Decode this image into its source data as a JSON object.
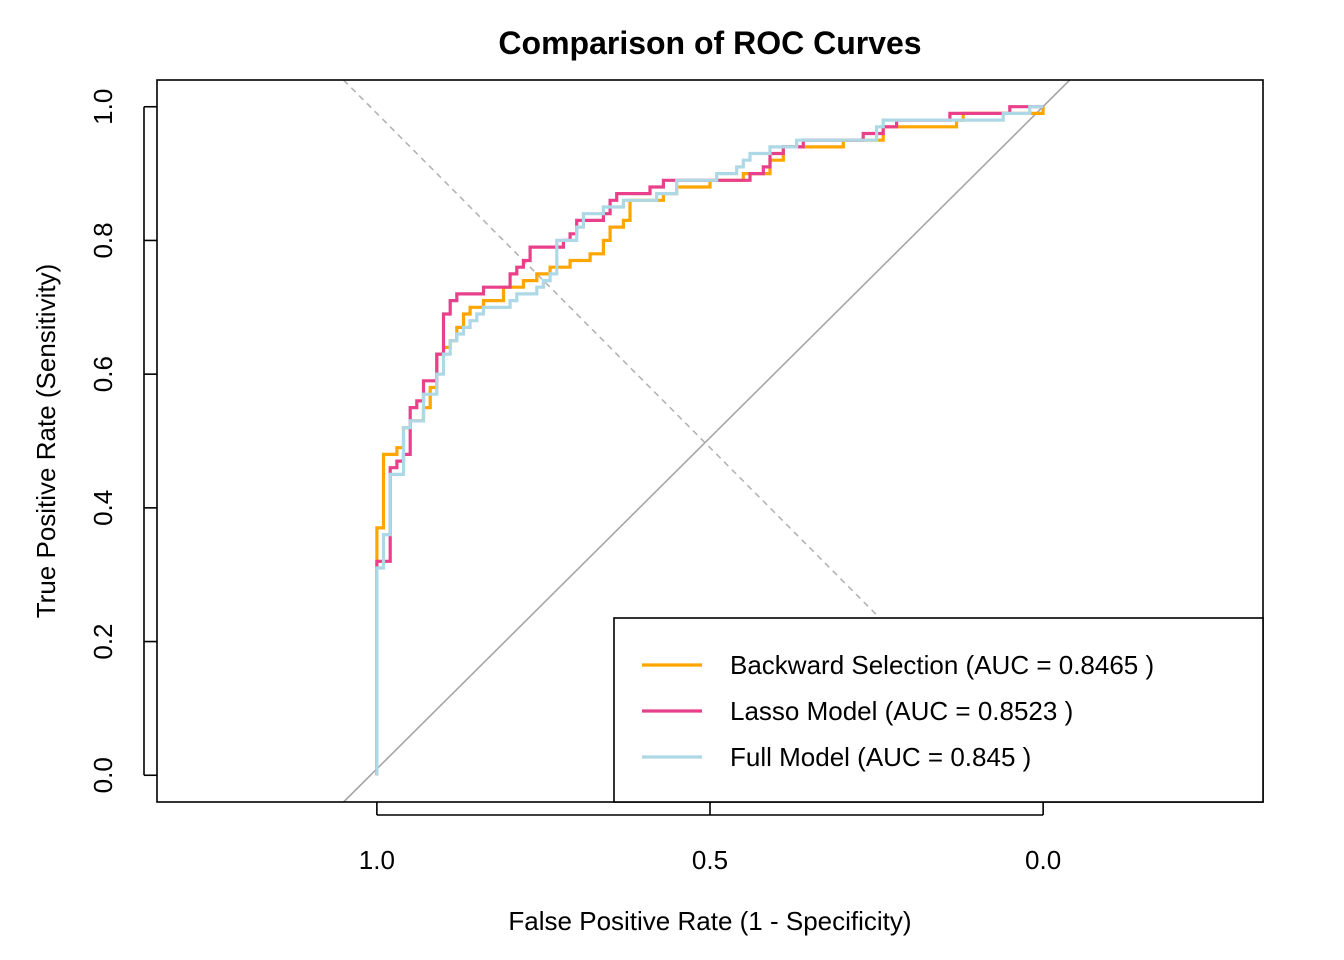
{
  "chart_data": {
    "type": "line",
    "title": "Comparison of ROC Curves",
    "xlabel": "False Positive Rate (1 - Specificity)",
    "ylabel": "True Positive Rate (Sensitivity)",
    "x_axis_reversed": true,
    "xlim": [
      1.33,
      -0.33
    ],
    "ylim": [
      -0.04,
      1.04
    ],
    "x_ticks": [
      {
        "value": 1.0,
        "label": "1.0"
      },
      {
        "value": 0.5,
        "label": "0.5"
      },
      {
        "value": 0.0,
        "label": "0.0"
      }
    ],
    "y_ticks": [
      {
        "value": 0.0,
        "label": "0.0"
      },
      {
        "value": 0.2,
        "label": "0.2"
      },
      {
        "value": 0.4,
        "label": "0.4"
      },
      {
        "value": 0.6,
        "label": "0.6"
      },
      {
        "value": 0.8,
        "label": "0.8"
      },
      {
        "value": 1.0,
        "label": "1.0"
      }
    ],
    "grid": false,
    "legend_position": "bottom-right",
    "reference_lines": [
      {
        "kind": "diagonal-solid",
        "color": "#a6a6a6",
        "points": [
          [
            1.05,
            -0.04
          ],
          [
            -0.04,
            1.04
          ]
        ]
      },
      {
        "kind": "diagonal-dashed",
        "color": "#b3b3b3",
        "points": [
          [
            1.05,
            1.04
          ],
          [
            0.25,
            0.24
          ]
        ]
      }
    ],
    "series": [
      {
        "name": "Backward Selection (AUC = 0.8465 )",
        "color": "#ffa500",
        "points": [
          [
            1.0,
            0.0
          ],
          [
            1.0,
            0.37
          ],
          [
            0.99,
            0.37
          ],
          [
            0.99,
            0.48
          ],
          [
            0.97,
            0.48
          ],
          [
            0.97,
            0.49
          ],
          [
            0.96,
            0.49
          ],
          [
            0.96,
            0.52
          ],
          [
            0.95,
            0.52
          ],
          [
            0.95,
            0.53
          ],
          [
            0.93,
            0.53
          ],
          [
            0.93,
            0.55
          ],
          [
            0.92,
            0.55
          ],
          [
            0.92,
            0.58
          ],
          [
            0.91,
            0.58
          ],
          [
            0.91,
            0.63
          ],
          [
            0.9,
            0.63
          ],
          [
            0.9,
            0.64
          ],
          [
            0.89,
            0.64
          ],
          [
            0.89,
            0.65
          ],
          [
            0.88,
            0.65
          ],
          [
            0.88,
            0.67
          ],
          [
            0.87,
            0.67
          ],
          [
            0.87,
            0.69
          ],
          [
            0.86,
            0.69
          ],
          [
            0.86,
            0.7
          ],
          [
            0.84,
            0.7
          ],
          [
            0.84,
            0.71
          ],
          [
            0.81,
            0.71
          ],
          [
            0.81,
            0.73
          ],
          [
            0.78,
            0.73
          ],
          [
            0.78,
            0.74
          ],
          [
            0.76,
            0.74
          ],
          [
            0.76,
            0.75
          ],
          [
            0.74,
            0.75
          ],
          [
            0.74,
            0.76
          ],
          [
            0.71,
            0.76
          ],
          [
            0.71,
            0.77
          ],
          [
            0.68,
            0.77
          ],
          [
            0.68,
            0.78
          ],
          [
            0.66,
            0.78
          ],
          [
            0.66,
            0.8
          ],
          [
            0.65,
            0.8
          ],
          [
            0.65,
            0.82
          ],
          [
            0.63,
            0.82
          ],
          [
            0.63,
            0.83
          ],
          [
            0.62,
            0.83
          ],
          [
            0.62,
            0.86
          ],
          [
            0.57,
            0.86
          ],
          [
            0.57,
            0.87
          ],
          [
            0.55,
            0.87
          ],
          [
            0.55,
            0.88
          ],
          [
            0.5,
            0.88
          ],
          [
            0.5,
            0.89
          ],
          [
            0.45,
            0.89
          ],
          [
            0.45,
            0.9
          ],
          [
            0.41,
            0.9
          ],
          [
            0.41,
            0.92
          ],
          [
            0.39,
            0.92
          ],
          [
            0.39,
            0.94
          ],
          [
            0.3,
            0.94
          ],
          [
            0.3,
            0.95
          ],
          [
            0.24,
            0.95
          ],
          [
            0.24,
            0.97
          ],
          [
            0.13,
            0.97
          ],
          [
            0.13,
            0.98
          ],
          [
            0.12,
            0.98
          ],
          [
            0.12,
            0.99
          ],
          [
            0.0,
            0.99
          ],
          [
            0.0,
            1.0
          ]
        ]
      },
      {
        "name": "Lasso Model (AUC = 0.8523 )",
        "color": "#e8408a",
        "points": [
          [
            1.0,
            0.0
          ],
          [
            1.0,
            0.32
          ],
          [
            0.98,
            0.32
          ],
          [
            0.98,
            0.34
          ],
          [
            0.98,
            0.46
          ],
          [
            0.97,
            0.46
          ],
          [
            0.97,
            0.47
          ],
          [
            0.96,
            0.47
          ],
          [
            0.96,
            0.48
          ],
          [
            0.95,
            0.48
          ],
          [
            0.95,
            0.55
          ],
          [
            0.94,
            0.55
          ],
          [
            0.94,
            0.56
          ],
          [
            0.93,
            0.56
          ],
          [
            0.93,
            0.59
          ],
          [
            0.91,
            0.59
          ],
          [
            0.91,
            0.63
          ],
          [
            0.9,
            0.63
          ],
          [
            0.9,
            0.69
          ],
          [
            0.89,
            0.69
          ],
          [
            0.89,
            0.71
          ],
          [
            0.88,
            0.71
          ],
          [
            0.88,
            0.72
          ],
          [
            0.84,
            0.72
          ],
          [
            0.84,
            0.73
          ],
          [
            0.8,
            0.73
          ],
          [
            0.8,
            0.75
          ],
          [
            0.79,
            0.75
          ],
          [
            0.79,
            0.76
          ],
          [
            0.78,
            0.76
          ],
          [
            0.78,
            0.77
          ],
          [
            0.77,
            0.77
          ],
          [
            0.77,
            0.79
          ],
          [
            0.72,
            0.79
          ],
          [
            0.72,
            0.8
          ],
          [
            0.71,
            0.8
          ],
          [
            0.71,
            0.81
          ],
          [
            0.7,
            0.81
          ],
          [
            0.7,
            0.83
          ],
          [
            0.66,
            0.83
          ],
          [
            0.66,
            0.84
          ],
          [
            0.65,
            0.84
          ],
          [
            0.65,
            0.86
          ],
          [
            0.64,
            0.86
          ],
          [
            0.64,
            0.87
          ],
          [
            0.59,
            0.87
          ],
          [
            0.59,
            0.88
          ],
          [
            0.57,
            0.88
          ],
          [
            0.57,
            0.89
          ],
          [
            0.44,
            0.89
          ],
          [
            0.44,
            0.9
          ],
          [
            0.42,
            0.9
          ],
          [
            0.42,
            0.91
          ],
          [
            0.41,
            0.91
          ],
          [
            0.41,
            0.93
          ],
          [
            0.39,
            0.93
          ],
          [
            0.39,
            0.94
          ],
          [
            0.36,
            0.94
          ],
          [
            0.36,
            0.95
          ],
          [
            0.27,
            0.95
          ],
          [
            0.27,
            0.96
          ],
          [
            0.24,
            0.96
          ],
          [
            0.24,
            0.97
          ],
          [
            0.22,
            0.97
          ],
          [
            0.22,
            0.98
          ],
          [
            0.14,
            0.98
          ],
          [
            0.14,
            0.99
          ],
          [
            0.05,
            0.99
          ],
          [
            0.05,
            1.0
          ],
          [
            0.0,
            1.0
          ]
        ]
      },
      {
        "name": "Full Model (AUC = 0.845 )",
        "color": "#add8e6",
        "points": [
          [
            1.0,
            0.0
          ],
          [
            1.0,
            0.31
          ],
          [
            0.99,
            0.31
          ],
          [
            0.99,
            0.36
          ],
          [
            0.98,
            0.36
          ],
          [
            0.98,
            0.45
          ],
          [
            0.96,
            0.45
          ],
          [
            0.96,
            0.52
          ],
          [
            0.95,
            0.52
          ],
          [
            0.95,
            0.53
          ],
          [
            0.93,
            0.53
          ],
          [
            0.93,
            0.57
          ],
          [
            0.91,
            0.57
          ],
          [
            0.91,
            0.6
          ],
          [
            0.9,
            0.6
          ],
          [
            0.9,
            0.63
          ],
          [
            0.89,
            0.63
          ],
          [
            0.89,
            0.65
          ],
          [
            0.88,
            0.65
          ],
          [
            0.88,
            0.66
          ],
          [
            0.87,
            0.66
          ],
          [
            0.87,
            0.67
          ],
          [
            0.86,
            0.67
          ],
          [
            0.86,
            0.68
          ],
          [
            0.85,
            0.68
          ],
          [
            0.85,
            0.69
          ],
          [
            0.84,
            0.69
          ],
          [
            0.84,
            0.7
          ],
          [
            0.8,
            0.7
          ],
          [
            0.8,
            0.71
          ],
          [
            0.79,
            0.71
          ],
          [
            0.79,
            0.72
          ],
          [
            0.76,
            0.72
          ],
          [
            0.76,
            0.73
          ],
          [
            0.75,
            0.73
          ],
          [
            0.75,
            0.74
          ],
          [
            0.74,
            0.74
          ],
          [
            0.74,
            0.75
          ],
          [
            0.73,
            0.75
          ],
          [
            0.73,
            0.8
          ],
          [
            0.7,
            0.8
          ],
          [
            0.7,
            0.82
          ],
          [
            0.69,
            0.82
          ],
          [
            0.69,
            0.84
          ],
          [
            0.66,
            0.84
          ],
          [
            0.66,
            0.85
          ],
          [
            0.63,
            0.85
          ],
          [
            0.63,
            0.86
          ],
          [
            0.58,
            0.86
          ],
          [
            0.58,
            0.87
          ],
          [
            0.55,
            0.87
          ],
          [
            0.55,
            0.89
          ],
          [
            0.49,
            0.89
          ],
          [
            0.49,
            0.9
          ],
          [
            0.46,
            0.9
          ],
          [
            0.46,
            0.91
          ],
          [
            0.45,
            0.91
          ],
          [
            0.45,
            0.92
          ],
          [
            0.44,
            0.92
          ],
          [
            0.44,
            0.93
          ],
          [
            0.41,
            0.93
          ],
          [
            0.41,
            0.94
          ],
          [
            0.37,
            0.94
          ],
          [
            0.37,
            0.95
          ],
          [
            0.25,
            0.95
          ],
          [
            0.25,
            0.97
          ],
          [
            0.24,
            0.97
          ],
          [
            0.24,
            0.98
          ],
          [
            0.06,
            0.98
          ],
          [
            0.06,
            0.99
          ],
          [
            0.02,
            0.99
          ],
          [
            0.02,
            1.0
          ],
          [
            0.0,
            1.0
          ]
        ]
      }
    ]
  }
}
